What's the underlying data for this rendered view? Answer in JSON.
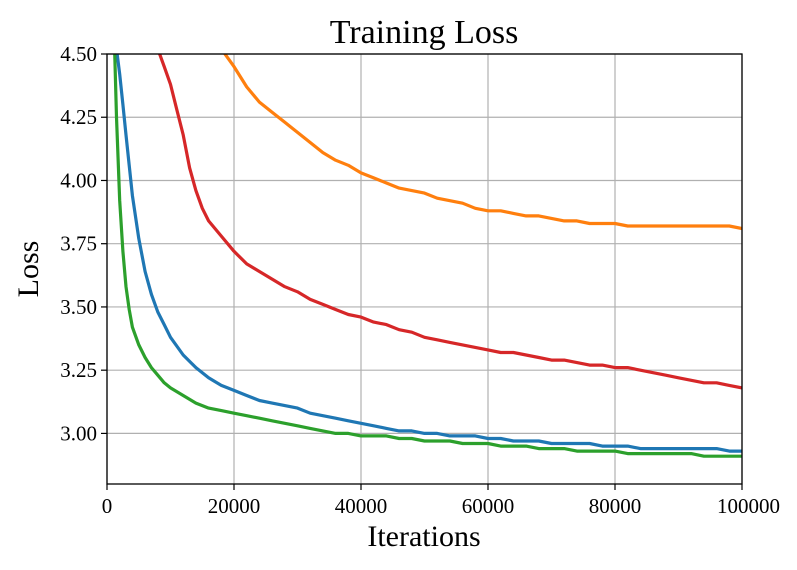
{
  "chart_data": {
    "type": "line",
    "title": "Training Loss",
    "xlabel": "Iterations",
    "ylabel": "Loss",
    "xlim": [
      0,
      100000
    ],
    "ylim": [
      2.8,
      4.5
    ],
    "xticks": [
      0,
      20000,
      40000,
      60000,
      80000,
      100000
    ],
    "xtick_labels": [
      "0",
      "20000",
      "40000",
      "60000",
      "80000",
      "100000"
    ],
    "yticks": [
      3.0,
      3.25,
      3.5,
      3.75,
      4.0,
      4.25,
      4.5
    ],
    "ytick_labels": [
      "3.00",
      "3.25",
      "3.50",
      "3.75",
      "4.00",
      "4.25",
      "4.50"
    ],
    "grid": true,
    "legend": "none",
    "series": [
      {
        "name": "orange",
        "color": "#ff7f0e",
        "x": [
          18000,
          20000,
          22000,
          24000,
          26000,
          28000,
          30000,
          32000,
          34000,
          36000,
          38000,
          40000,
          42000,
          44000,
          46000,
          48000,
          50000,
          52000,
          54000,
          56000,
          58000,
          60000,
          62000,
          64000,
          66000,
          68000,
          70000,
          72000,
          74000,
          76000,
          78000,
          80000,
          82000,
          84000,
          86000,
          88000,
          90000,
          92000,
          94000,
          96000,
          98000,
          100000
        ],
        "y": [
          4.52,
          4.45,
          4.37,
          4.31,
          4.27,
          4.23,
          4.19,
          4.15,
          4.11,
          4.08,
          4.06,
          4.03,
          4.01,
          3.99,
          3.97,
          3.96,
          3.95,
          3.93,
          3.92,
          3.91,
          3.89,
          3.88,
          3.88,
          3.87,
          3.86,
          3.86,
          3.85,
          3.84,
          3.84,
          3.83,
          3.83,
          3.83,
          3.82,
          3.82,
          3.82,
          3.82,
          3.82,
          3.82,
          3.82,
          3.82,
          3.82,
          3.81
        ]
      },
      {
        "name": "red",
        "color": "#d62728",
        "x": [
          8000,
          9000,
          10000,
          11000,
          12000,
          13000,
          14000,
          15000,
          16000,
          18000,
          20000,
          22000,
          24000,
          26000,
          28000,
          30000,
          32000,
          34000,
          36000,
          38000,
          40000,
          42000,
          44000,
          46000,
          48000,
          50000,
          52000,
          54000,
          56000,
          58000,
          60000,
          62000,
          64000,
          66000,
          68000,
          70000,
          72000,
          74000,
          76000,
          78000,
          80000,
          82000,
          84000,
          86000,
          88000,
          90000,
          92000,
          94000,
          96000,
          98000,
          100000
        ],
        "y": [
          4.52,
          4.45,
          4.38,
          4.28,
          4.18,
          4.05,
          3.96,
          3.89,
          3.84,
          3.78,
          3.72,
          3.67,
          3.64,
          3.61,
          3.58,
          3.56,
          3.53,
          3.51,
          3.49,
          3.47,
          3.46,
          3.44,
          3.43,
          3.41,
          3.4,
          3.38,
          3.37,
          3.36,
          3.35,
          3.34,
          3.33,
          3.32,
          3.32,
          3.31,
          3.3,
          3.29,
          3.29,
          3.28,
          3.27,
          3.27,
          3.26,
          3.26,
          3.25,
          3.24,
          3.23,
          3.22,
          3.21,
          3.2,
          3.2,
          3.19,
          3.18
        ]
      },
      {
        "name": "blue",
        "color": "#1f77b4",
        "x": [
          1500,
          2000,
          2500,
          3000,
          3500,
          4000,
          5000,
          6000,
          7000,
          8000,
          9000,
          10000,
          12000,
          14000,
          16000,
          18000,
          20000,
          22000,
          24000,
          26000,
          28000,
          30000,
          32000,
          34000,
          36000,
          38000,
          40000,
          42000,
          44000,
          46000,
          48000,
          50000,
          52000,
          54000,
          56000,
          58000,
          60000,
          62000,
          64000,
          66000,
          68000,
          70000,
          72000,
          74000,
          76000,
          78000,
          80000,
          82000,
          84000,
          86000,
          88000,
          90000,
          92000,
          94000,
          96000,
          98000,
          100000
        ],
        "y": [
          4.52,
          4.42,
          4.3,
          4.18,
          4.06,
          3.94,
          3.77,
          3.64,
          3.55,
          3.48,
          3.43,
          3.38,
          3.31,
          3.26,
          3.22,
          3.19,
          3.17,
          3.15,
          3.13,
          3.12,
          3.11,
          3.1,
          3.08,
          3.07,
          3.06,
          3.05,
          3.04,
          3.03,
          3.02,
          3.01,
          3.01,
          3.0,
          3.0,
          2.99,
          2.99,
          2.99,
          2.98,
          2.98,
          2.97,
          2.97,
          2.97,
          2.96,
          2.96,
          2.96,
          2.96,
          2.95,
          2.95,
          2.95,
          2.94,
          2.94,
          2.94,
          2.94,
          2.94,
          2.94,
          2.94,
          2.93,
          2.93
        ]
      },
      {
        "name": "green",
        "color": "#2ca02c",
        "x": [
          1200,
          1500,
          2000,
          2500,
          3000,
          3500,
          4000,
          5000,
          6000,
          7000,
          8000,
          9000,
          10000,
          12000,
          14000,
          16000,
          18000,
          20000,
          22000,
          24000,
          26000,
          28000,
          30000,
          32000,
          34000,
          36000,
          38000,
          40000,
          42000,
          44000,
          46000,
          48000,
          50000,
          52000,
          54000,
          56000,
          58000,
          60000,
          62000,
          64000,
          66000,
          68000,
          70000,
          72000,
          74000,
          76000,
          78000,
          80000,
          82000,
          84000,
          86000,
          88000,
          90000,
          92000,
          94000,
          96000,
          98000,
          100000
        ],
        "y": [
          4.52,
          4.25,
          3.92,
          3.72,
          3.58,
          3.49,
          3.42,
          3.35,
          3.3,
          3.26,
          3.23,
          3.2,
          3.18,
          3.15,
          3.12,
          3.1,
          3.09,
          3.08,
          3.07,
          3.06,
          3.05,
          3.04,
          3.03,
          3.02,
          3.01,
          3.0,
          3.0,
          2.99,
          2.99,
          2.99,
          2.98,
          2.98,
          2.97,
          2.97,
          2.97,
          2.96,
          2.96,
          2.96,
          2.95,
          2.95,
          2.95,
          2.94,
          2.94,
          2.94,
          2.93,
          2.93,
          2.93,
          2.93,
          2.92,
          2.92,
          2.92,
          2.92,
          2.92,
          2.92,
          2.91,
          2.91,
          2.91,
          2.91
        ]
      }
    ]
  }
}
